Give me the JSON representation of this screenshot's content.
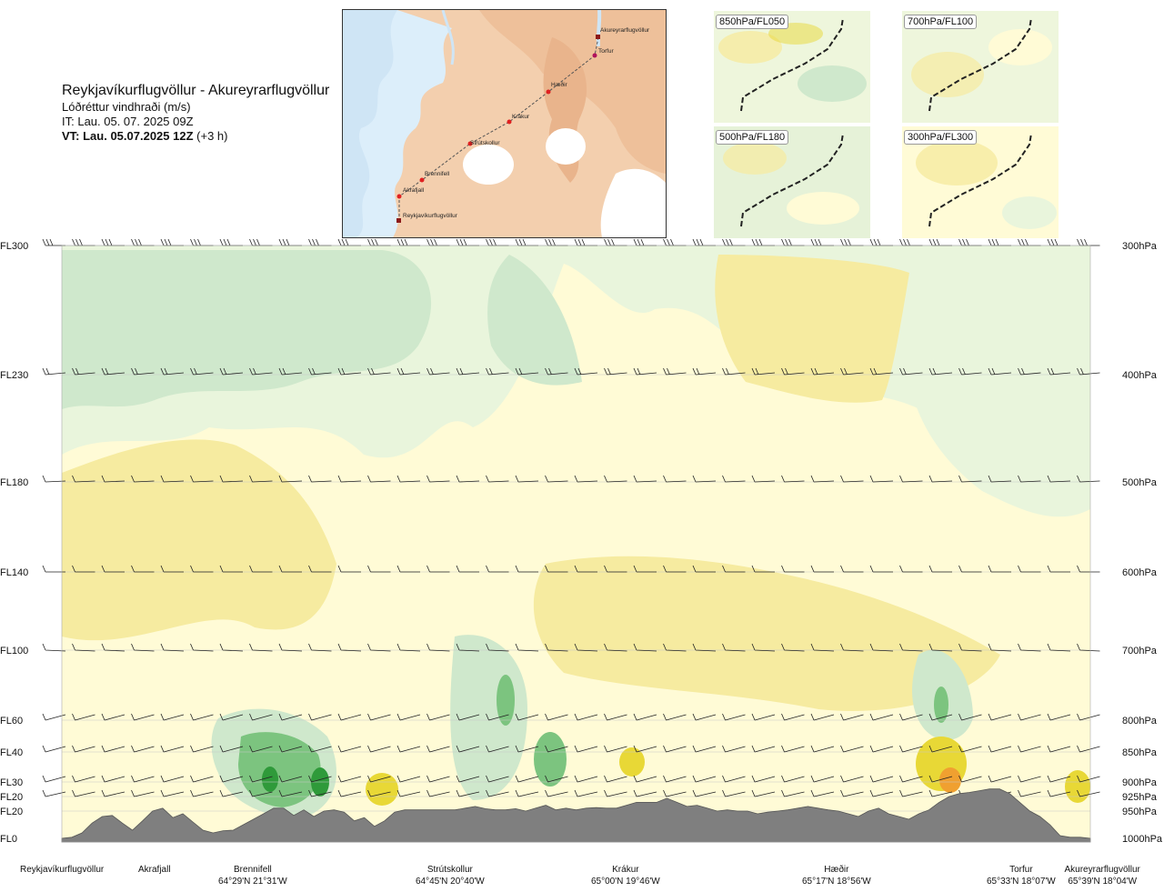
{
  "header": {
    "title": "Reykjavíkurflugvöllur - Akureyrarflugvöllur",
    "subtitle": "Lóðréttur vindhraði (m/s)",
    "issue_time": "IT: Lau. 05. 07. 2025 09Z",
    "valid_time": "VT: Lau. 05.07.2025 12Z",
    "lead": "(+3 h)"
  },
  "route_map": {
    "points": [
      {
        "name": "Akureyrarflugvöllur"
      },
      {
        "name": "Torfur"
      },
      {
        "name": "Hæðir"
      },
      {
        "name": "Krákur"
      },
      {
        "name": "Strútskollur"
      },
      {
        "name": "Brennifell"
      },
      {
        "name": "Akrafjall"
      },
      {
        "name": "Reykjavíkurflugvöllur"
      }
    ]
  },
  "mini_maps": [
    {
      "label": "850hPa/FL050"
    },
    {
      "label": "700hPa/FL100"
    },
    {
      "label": "500hPa/FL180"
    },
    {
      "label": "300hPa/FL300"
    }
  ],
  "colors": {
    "terrain": "#7f7f7f",
    "down_weak": "#fffbd6",
    "down_mod": "#f6eba0",
    "down_strong": "#e8d836",
    "up_weak": "#e9f5dc",
    "up_mod": "#cfe8cc",
    "up_strong": "#7cc47f",
    "up_vstrong": "#2f9a3a"
  },
  "chart_data": {
    "type": "heatmap",
    "title": "Lóðréttur vindhraði (m/s)",
    "left_levels": [
      "FL300",
      "FL230",
      "FL180",
      "FL140",
      "FL100",
      "FL60",
      "FL40",
      "FL30",
      "FL20",
      "FL20",
      "FL0"
    ],
    "right_levels": [
      "300hPa",
      "400hPa",
      "500hPa",
      "600hPa",
      "700hPa",
      "800hPa",
      "850hPa",
      "900hPa",
      "925hPa",
      "950hPa",
      "1000hPa"
    ],
    "pressure_hpa": [
      300,
      400,
      500,
      600,
      700,
      800,
      850,
      900,
      925,
      950,
      1000
    ],
    "waypoints": [
      {
        "name": "Reykjavíkurflugvöllur",
        "coord": ""
      },
      {
        "name": "Akrafjall",
        "coord": ""
      },
      {
        "name": "Brennifell",
        "coord": "64°29'N 21°31'W"
      },
      {
        "name": "Strútskollur",
        "coord": "64°45'N 20°40'W"
      },
      {
        "name": "Krákur",
        "coord": "65°00'N 19°46'W"
      },
      {
        "name": "Hæðir",
        "coord": "65°17'N 18°56'W"
      },
      {
        "name": "Torfur",
        "coord": "65°33'N 18°07'W"
      },
      {
        "name": "Akureyrarflugvöllur",
        "coord": "65°39'N 18°04'W"
      }
    ],
    "waypoint_pos": [
      0.0,
      0.09,
      0.19,
      0.37,
      0.55,
      0.73,
      0.93,
      1.0
    ],
    "terrain_hpa": [
      1000,
      998,
      990,
      972,
      960,
      958,
      972,
      985,
      968,
      950,
      945,
      962,
      955,
      970,
      985,
      990,
      986,
      985,
      975,
      965,
      955,
      945,
      945,
      958,
      948,
      960,
      950,
      948,
      952,
      968,
      962,
      978,
      968,
      952,
      948,
      948,
      948,
      948,
      948,
      948,
      945,
      942,
      946,
      948,
      948,
      946,
      950,
      945,
      940,
      948,
      945,
      948,
      945,
      944,
      945,
      945,
      940,
      935,
      935,
      935,
      928,
      935,
      942,
      940,
      945,
      950,
      948,
      950,
      950,
      955,
      952,
      950,
      948,
      945,
      942,
      945,
      948,
      950,
      955,
      960,
      950,
      945,
      955,
      960,
      965,
      955,
      948,
      935,
      925,
      920,
      918,
      915,
      912,
      912,
      920,
      935,
      950,
      960,
      975,
      995,
      998,
      998,
      1000
    ]
  }
}
